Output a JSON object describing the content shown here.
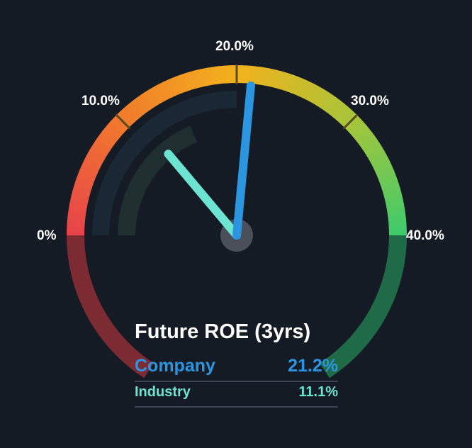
{
  "chart_data": {
    "type": "gauge",
    "title": "Future ROE (3yrs)",
    "range": [
      0,
      40
    ],
    "ticks": [
      {
        "value": 0,
        "label": "0%"
      },
      {
        "value": 10,
        "label": "10.0%"
      },
      {
        "value": 20,
        "label": "20.0%"
      },
      {
        "value": 30,
        "label": "30.0%"
      },
      {
        "value": 40,
        "label": "40.0%"
      }
    ],
    "series": [
      {
        "name": "Company",
        "value": 21.2,
        "display": "21.2%",
        "color": "#2b95e0"
      },
      {
        "name": "Industry",
        "value": 11.1,
        "display": "11.1%",
        "color": "#6de4d2"
      }
    ],
    "gradient_colors": [
      "#e8424a",
      "#f07a2c",
      "#f2b21c",
      "#a7c53a",
      "#3ecb6c"
    ],
    "lower_left_color": "#7d2b32",
    "lower_right_color": "#1f6b48"
  }
}
